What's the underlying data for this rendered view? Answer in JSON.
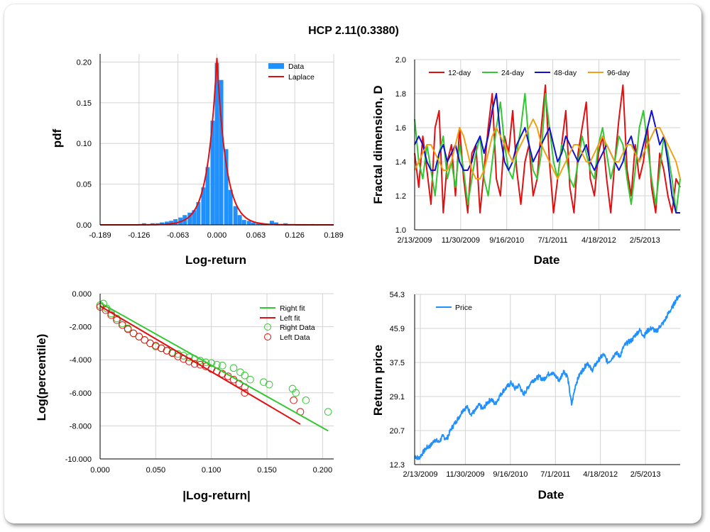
{
  "title": "HCP 2.11(0.3380)",
  "colors": {
    "data_blue": "#1e90ff",
    "fit_red": "#e01010",
    "fit_green": "#32c832",
    "d12": "#e01010",
    "d24": "#32c832",
    "d48": "#1010d0",
    "d96": "#f0a010",
    "grid": "#d3d3d3"
  },
  "chart_data": [
    {
      "id": "pdf",
      "type": "bar",
      "xlabel": "Log-return",
      "ylabel": "pdf",
      "xlim": [
        -0.189,
        0.189
      ],
      "ylim": [
        0,
        0.21
      ],
      "xticks": [
        "-0.189",
        "-0.126",
        "-0.063",
        "0.000",
        "0.063",
        "0.126",
        "0.189"
      ],
      "yticks": [
        "0.00",
        "0.05",
        "0.10",
        "0.15",
        "0.20"
      ],
      "legend": [
        "Data",
        "Laplace"
      ],
      "legend_position": "top-right",
      "bins": [
        [
          -0.126,
          0.001
        ],
        [
          -0.118,
          0.002
        ],
        [
          -0.111,
          0.001
        ],
        [
          -0.104,
          0.002
        ],
        [
          -0.096,
          0.002
        ],
        [
          -0.089,
          0.003
        ],
        [
          -0.081,
          0.004
        ],
        [
          -0.074,
          0.005
        ],
        [
          -0.067,
          0.007
        ],
        [
          -0.059,
          0.009
        ],
        [
          -0.052,
          0.012
        ],
        [
          -0.044,
          0.015
        ],
        [
          -0.037,
          0.018
        ],
        [
          -0.03,
          0.028
        ],
        [
          -0.022,
          0.046
        ],
        [
          -0.015,
          0.071
        ],
        [
          -0.007,
          0.128
        ],
        [
          0.0,
          0.199
        ],
        [
          0.007,
          0.178
        ],
        [
          0.015,
          0.093
        ],
        [
          0.022,
          0.043
        ],
        [
          0.03,
          0.023
        ],
        [
          0.037,
          0.012
        ],
        [
          0.044,
          0.006
        ],
        [
          0.052,
          0.005
        ],
        [
          0.059,
          0.003
        ],
        [
          0.067,
          0.003
        ],
        [
          0.074,
          0.001
        ],
        [
          0.081,
          0.001
        ],
        [
          0.089,
          0.005
        ],
        [
          0.096,
          0.003
        ],
        [
          0.104,
          0.001
        ],
        [
          0.111,
          0.002
        ],
        [
          0.118,
          0.001
        ],
        [
          0.126,
          0.001
        ],
        [
          0.133,
          0.001
        ],
        [
          0.141,
          0.001
        ],
        [
          0.155,
          0.001
        ]
      ],
      "laplace": {
        "mu": 0.0,
        "b": 0.0024,
        "peak": 0.205
      }
    },
    {
      "id": "fractal",
      "type": "line",
      "xlabel": "Date",
      "ylabel": "Fractal dimension, D",
      "ylim": [
        1.0,
        2.0
      ],
      "yticks": [
        "1.0",
        "1.2",
        "1.4",
        "1.6",
        "1.8",
        "2.0"
      ],
      "xticks": [
        "2/13/2009",
        "11/30/2009",
        "9/16/2010",
        "7/1/2011",
        "4/18/2012",
        "2/5/2013"
      ],
      "legend_position": "top-left",
      "series": [
        {
          "name": "12-day",
          "values": [
            1.45,
            1.25,
            1.55,
            1.35,
            1.15,
            1.6,
            1.7,
            1.1,
            1.4,
            1.5,
            1.2,
            1.6,
            1.3,
            1.1,
            1.45,
            1.5,
            1.1,
            1.35,
            1.6,
            1.8,
            1.3,
            1.2,
            1.55,
            1.45,
            1.7,
            1.35,
            1.15,
            1.4,
            1.5,
            1.2,
            1.3,
            1.6,
            1.85,
            1.4,
            1.1,
            1.3,
            1.5,
            1.7,
            1.25,
            1.1,
            1.45,
            1.6,
            1.75,
            1.3,
            1.2,
            1.45,
            1.55,
            1.3,
            1.1,
            1.4,
            1.65,
            1.85,
            1.35,
            1.2,
            1.5,
            1.3,
            1.4,
            1.6,
            1.25,
            1.1,
            1.45,
            1.35,
            1.2,
            1.1,
            1.3,
            1.25
          ]
        },
        {
          "name": "24-day",
          "values": [
            1.65,
            1.4,
            1.3,
            1.5,
            1.35,
            1.2,
            1.45,
            1.55,
            1.3,
            1.4,
            1.25,
            1.5,
            1.35,
            1.15,
            1.3,
            1.45,
            1.55,
            1.3,
            1.2,
            1.4,
            1.6,
            1.75,
            1.5,
            1.35,
            1.3,
            1.45,
            1.6,
            1.8,
            1.5,
            1.35,
            1.3,
            1.45,
            1.8,
            1.6,
            1.4,
            1.3,
            1.5,
            1.45,
            1.3,
            1.25,
            1.4,
            1.55,
            1.45,
            1.35,
            1.3,
            1.5,
            1.6,
            1.45,
            1.3,
            1.4,
            1.55,
            1.5,
            1.3,
            1.15,
            1.35,
            1.6,
            1.7,
            1.5,
            1.3,
            1.15,
            1.35,
            1.55,
            1.45,
            1.3,
            1.1,
            1.3
          ]
        },
        {
          "name": "48-day",
          "values": [
            1.5,
            1.55,
            1.5,
            1.4,
            1.35,
            1.35,
            1.45,
            1.5,
            1.4,
            1.45,
            1.5,
            1.4,
            1.35,
            1.35,
            1.4,
            1.5,
            1.55,
            1.45,
            1.55,
            1.7,
            1.8,
            1.55,
            1.4,
            1.35,
            1.4,
            1.5,
            1.55,
            1.6,
            1.5,
            1.4,
            1.45,
            1.5,
            1.55,
            1.6,
            1.5,
            1.4,
            1.45,
            1.55,
            1.5,
            1.45,
            1.4,
            1.45,
            1.5,
            1.4,
            1.35,
            1.4,
            1.45,
            1.5,
            1.45,
            1.4,
            1.35,
            1.4,
            1.5,
            1.55,
            1.45,
            1.4,
            1.5,
            1.6,
            1.7,
            1.6,
            1.5,
            1.55,
            1.4,
            1.2,
            1.1,
            1.1
          ]
        },
        {
          "name": "96-day",
          "values": [
            1.35,
            1.4,
            1.45,
            1.5,
            1.5,
            1.45,
            1.4,
            1.35,
            1.35,
            1.4,
            1.5,
            1.6,
            1.55,
            1.45,
            1.35,
            1.3,
            1.3,
            1.35,
            1.45,
            1.55,
            1.6,
            1.55,
            1.5,
            1.45,
            1.4,
            1.45,
            1.5,
            1.55,
            1.6,
            1.65,
            1.6,
            1.5,
            1.45,
            1.4,
            1.35,
            1.3,
            1.35,
            1.4,
            1.45,
            1.5,
            1.5,
            1.45,
            1.4,
            1.4,
            1.45,
            1.5,
            1.55,
            1.5,
            1.45,
            1.4,
            1.4,
            1.45,
            1.5,
            1.5,
            1.45,
            1.4,
            1.45,
            1.5,
            1.55,
            1.6,
            1.6,
            1.55,
            1.5,
            1.45,
            1.4,
            1.3
          ]
        }
      ]
    },
    {
      "id": "tail",
      "type": "scatter",
      "xlabel": "|Log-return|",
      "ylabel": "Log(percentile)",
      "xlim": [
        0,
        0.21
      ],
      "ylim": [
        -10,
        0
      ],
      "xticks": [
        "0.000",
        "0.050",
        "0.100",
        "0.150",
        "0.200"
      ],
      "yticks": [
        "0.000",
        "-2.000",
        "-4.000",
        "-6.000",
        "-8.000",
        "-10.000"
      ],
      "legend": [
        "Right fit",
        "Left fit",
        "Right Data",
        "Left Data"
      ],
      "legend_position": "top-right",
      "right_fit": [
        [
          0.0,
          -0.55
        ],
        [
          0.205,
          -8.3
        ]
      ],
      "left_fit": [
        [
          0.0,
          -0.75
        ],
        [
          0.18,
          -7.9
        ]
      ],
      "right_data": [
        [
          0.0,
          -0.7
        ],
        [
          0.003,
          -0.6
        ],
        [
          0.006,
          -0.9
        ],
        [
          0.01,
          -1.2
        ],
        [
          0.015,
          -1.5
        ],
        [
          0.02,
          -1.8
        ],
        [
          0.025,
          -2.1
        ],
        [
          0.03,
          -2.4
        ],
        [
          0.035,
          -2.6
        ],
        [
          0.04,
          -2.8
        ],
        [
          0.045,
          -3.0
        ],
        [
          0.05,
          -3.2
        ],
        [
          0.055,
          -3.3
        ],
        [
          0.06,
          -3.45
        ],
        [
          0.065,
          -3.55
        ],
        [
          0.07,
          -3.65
        ],
        [
          0.075,
          -3.75
        ],
        [
          0.08,
          -3.85
        ],
        [
          0.085,
          -3.95
        ],
        [
          0.09,
          -4.05
        ],
        [
          0.095,
          -4.15
        ],
        [
          0.1,
          -4.2
        ],
        [
          0.105,
          -4.3
        ],
        [
          0.11,
          -4.35
        ],
        [
          0.12,
          -4.5
        ],
        [
          0.126,
          -4.75
        ],
        [
          0.13,
          -4.95
        ],
        [
          0.135,
          -5.2
        ],
        [
          0.147,
          -5.35
        ],
        [
          0.152,
          -5.5
        ],
        [
          0.173,
          -5.75
        ],
        [
          0.176,
          -6.0
        ],
        [
          0.185,
          -6.45
        ],
        [
          0.205,
          -7.15
        ]
      ],
      "left_data": [
        [
          0.0,
          -0.8
        ],
        [
          0.005,
          -1.0
        ],
        [
          0.01,
          -1.3
        ],
        [
          0.015,
          -1.6
        ],
        [
          0.02,
          -1.9
        ],
        [
          0.025,
          -2.15
        ],
        [
          0.03,
          -2.4
        ],
        [
          0.035,
          -2.6
        ],
        [
          0.04,
          -2.8
        ],
        [
          0.045,
          -3.0
        ],
        [
          0.05,
          -3.15
        ],
        [
          0.055,
          -3.3
        ],
        [
          0.06,
          -3.45
        ],
        [
          0.065,
          -3.6
        ],
        [
          0.07,
          -3.8
        ],
        [
          0.075,
          -3.95
        ],
        [
          0.08,
          -4.1
        ],
        [
          0.085,
          -4.25
        ],
        [
          0.09,
          -4.3
        ],
        [
          0.095,
          -4.4
        ],
        [
          0.1,
          -4.55
        ],
        [
          0.105,
          -4.7
        ],
        [
          0.11,
          -4.85
        ],
        [
          0.115,
          -5.0
        ],
        [
          0.12,
          -5.2
        ],
        [
          0.125,
          -5.45
        ],
        [
          0.13,
          -5.65
        ],
        [
          0.13,
          -6.0
        ],
        [
          0.174,
          -6.45
        ],
        [
          0.18,
          -7.15
        ]
      ]
    },
    {
      "id": "price",
      "type": "line",
      "xlabel": "Date",
      "ylabel": "Return price",
      "ylim": [
        12.3,
        54.3
      ],
      "yticks": [
        "54.3",
        "45.9",
        "37.5",
        "29.1",
        "20.7",
        "12.3"
      ],
      "xticks": [
        "2/13/2009",
        "11/30/2009",
        "9/16/2010",
        "7/1/2011",
        "4/18/2012",
        "2/5/2013"
      ],
      "legend_position": "top-left",
      "series": [
        {
          "name": "Price",
          "values": [
            14.5,
            13.8,
            15.2,
            16.5,
            17.0,
            18.5,
            17.8,
            19.3,
            18.6,
            21.0,
            22.5,
            24.0,
            25.8,
            26.5,
            24.8,
            25.5,
            27.0,
            26.0,
            27.5,
            28.5,
            27.2,
            29.0,
            30.5,
            31.5,
            32.5,
            31.0,
            32.0,
            29.5,
            31.0,
            32.8,
            33.5,
            34.0,
            33.2,
            34.5,
            35.0,
            34.2,
            33.0,
            35.5,
            34.0,
            27.0,
            32.0,
            34.5,
            36.0,
            37.5,
            35.5,
            37.0,
            38.5,
            39.5,
            37.5,
            38.5,
            40.0,
            39.0,
            41.5,
            42.5,
            43.0,
            44.5,
            45.5,
            44.0,
            45.5,
            46.0,
            45.0,
            46.5,
            47.5,
            49.5,
            51.0,
            53.0,
            54.3
          ]
        }
      ]
    }
  ]
}
